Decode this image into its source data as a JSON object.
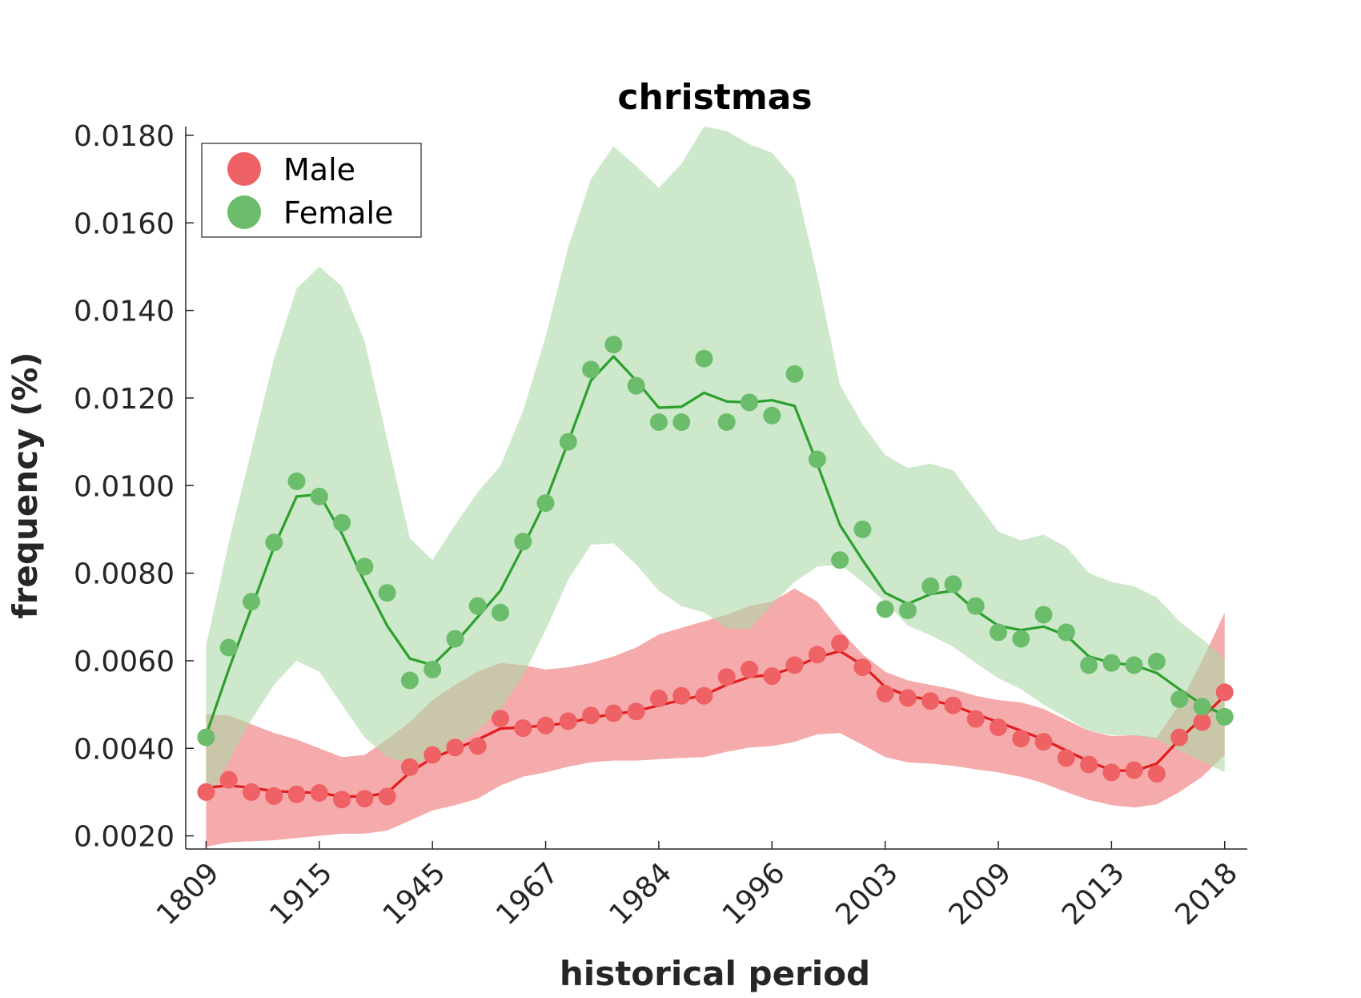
{
  "chart_data": {
    "type": "line",
    "title": "christmas",
    "xlabel": "historical period",
    "ylabel": "frequency (%)",
    "ylim": [
      0.0017,
      0.0182
    ],
    "yticks": [
      0.002,
      0.004,
      0.006,
      0.008,
      0.01,
      0.012,
      0.014,
      0.016,
      0.018
    ],
    "ytick_labels": [
      "0.0020",
      "0.0040",
      "0.0060",
      "0.0080",
      "0.0100",
      "0.0120",
      "0.0140",
      "0.0160",
      "0.0180"
    ],
    "x_tick_labels": [
      "1809",
      "1915",
      "1945",
      "1967",
      "1984",
      "1996",
      "2003",
      "2009",
      "2013",
      "2018"
    ],
    "x_tick_positions": [
      0,
      5,
      10,
      15,
      20,
      25,
      30,
      35,
      40,
      45
    ],
    "xlim": [
      -0.9,
      46.0
    ],
    "legend_placement": "top-left",
    "grid": false,
    "series": [
      {
        "name": "Male",
        "color": "#e41a1c",
        "scatter_color": "#ee6266",
        "band_color": "#f4a3a4",
        "points": [
          0.003,
          0.00328,
          0.003,
          0.00291,
          0.00295,
          0.00298,
          0.00283,
          0.00285,
          0.0029,
          0.00357,
          0.00385,
          0.00402,
          0.00405,
          0.00468,
          0.00446,
          0.00452,
          0.00462,
          0.00475,
          0.0048,
          0.00484,
          0.00514,
          0.0052,
          0.0052,
          0.00563,
          0.0058,
          0.00565,
          0.0059,
          0.00614,
          0.0064,
          0.00585,
          0.00525,
          0.00515,
          0.00508,
          0.00498,
          0.00467,
          0.00448,
          0.00422,
          0.00415,
          0.00378,
          0.00363,
          0.00345,
          0.0035,
          0.00342,
          0.00425,
          0.0046,
          0.00528
        ],
        "smooth": [
          0.0031,
          0.00315,
          0.0031,
          0.00302,
          0.003,
          0.00298,
          0.0029,
          0.0029,
          0.00298,
          0.00345,
          0.00378,
          0.00398,
          0.0042,
          0.00445,
          0.00448,
          0.00452,
          0.00458,
          0.0047,
          0.00478,
          0.00485,
          0.00498,
          0.0051,
          0.00522,
          0.00545,
          0.00563,
          0.00568,
          0.00585,
          0.00608,
          0.00622,
          0.0059,
          0.0054,
          0.0052,
          0.0051,
          0.00498,
          0.00478,
          0.0046,
          0.0044,
          0.0042,
          0.00395,
          0.0037,
          0.0035,
          0.00348,
          0.00365,
          0.0042,
          0.0047,
          0.0052
        ],
        "band_upper": [
          0.00477,
          0.00475,
          0.00455,
          0.00435,
          0.0042,
          0.004,
          0.0038,
          0.00385,
          0.0042,
          0.0046,
          0.0051,
          0.00545,
          0.00575,
          0.00595,
          0.0059,
          0.0058,
          0.00585,
          0.00595,
          0.0061,
          0.0063,
          0.0066,
          0.00675,
          0.0069,
          0.00705,
          0.00725,
          0.00735,
          0.00765,
          0.00735,
          0.0067,
          0.00615,
          0.00575,
          0.00555,
          0.00545,
          0.00535,
          0.0052,
          0.0051,
          0.00505,
          0.0049,
          0.00465,
          0.0044,
          0.00428,
          0.0043,
          0.00425,
          0.005,
          0.006,
          0.0071
        ],
        "band_lower": [
          0.00175,
          0.00185,
          0.00188,
          0.0019,
          0.00195,
          0.002,
          0.00205,
          0.00205,
          0.00212,
          0.00235,
          0.00258,
          0.0027,
          0.00285,
          0.00315,
          0.00335,
          0.00345,
          0.00358,
          0.00368,
          0.00372,
          0.00372,
          0.00375,
          0.00378,
          0.0038,
          0.00392,
          0.00402,
          0.00405,
          0.00415,
          0.00432,
          0.00435,
          0.00408,
          0.0038,
          0.00368,
          0.00365,
          0.0036,
          0.00352,
          0.00345,
          0.00335,
          0.0032,
          0.003,
          0.00282,
          0.0027,
          0.00265,
          0.00272,
          0.003,
          0.00335,
          0.00385
        ]
      },
      {
        "name": "Female",
        "color": "#2ca02c",
        "scatter_color": "#6bbd6b",
        "band_color": "#add8a8",
        "points": [
          0.00425,
          0.0063,
          0.00735,
          0.0087,
          0.0101,
          0.00975,
          0.00915,
          0.00815,
          0.00755,
          0.00555,
          0.0058,
          0.0065,
          0.00725,
          0.0071,
          0.00872,
          0.0096,
          0.011,
          0.01265,
          0.01322,
          0.01228,
          0.01145,
          0.01145,
          0.0129,
          0.01145,
          0.0119,
          0.0116,
          0.01255,
          0.0106,
          0.0083,
          0.009,
          0.00718,
          0.00715,
          0.0077,
          0.00775,
          0.00725,
          0.00665,
          0.0065,
          0.00705,
          0.00665,
          0.0059,
          0.00595,
          0.0059,
          0.00598,
          0.00512,
          0.00495,
          0.00472
        ],
        "smooth": [
          0.0043,
          0.0058,
          0.0072,
          0.0086,
          0.00975,
          0.0098,
          0.0089,
          0.0078,
          0.0068,
          0.00605,
          0.0059,
          0.0064,
          0.007,
          0.0076,
          0.0086,
          0.00965,
          0.011,
          0.0124,
          0.01295,
          0.0124,
          0.01178,
          0.0118,
          0.01212,
          0.01192,
          0.0119,
          0.01195,
          0.01182,
          0.0105,
          0.0091,
          0.0083,
          0.00755,
          0.0073,
          0.00752,
          0.0076,
          0.00715,
          0.0068,
          0.0067,
          0.00678,
          0.00658,
          0.0061,
          0.00595,
          0.0059,
          0.00572,
          0.00535,
          0.005,
          0.00475
        ],
        "band_upper": [
          0.00635,
          0.0087,
          0.0108,
          0.0129,
          0.0145,
          0.015,
          0.01455,
          0.0133,
          0.01105,
          0.0088,
          0.0083,
          0.0091,
          0.00985,
          0.01045,
          0.0117,
          0.0134,
          0.01545,
          0.017,
          0.01775,
          0.0173,
          0.0168,
          0.01735,
          0.0182,
          0.0181,
          0.0178,
          0.0176,
          0.017,
          0.0148,
          0.0123,
          0.0114,
          0.0107,
          0.0104,
          0.0105,
          0.01035,
          0.00965,
          0.00895,
          0.00875,
          0.00888,
          0.0086,
          0.008,
          0.0078,
          0.0077,
          0.00745,
          0.0069,
          0.0065,
          0.00605
        ],
        "band_lower": [
          0.00275,
          0.0037,
          0.00465,
          0.00545,
          0.006,
          0.00575,
          0.005,
          0.00425,
          0.0038,
          0.00365,
          0.00375,
          0.00405,
          0.0044,
          0.0049,
          0.00565,
          0.0067,
          0.00785,
          0.00865,
          0.00868,
          0.0082,
          0.0076,
          0.00725,
          0.0071,
          0.00675,
          0.00672,
          0.00728,
          0.0078,
          0.00815,
          0.0082,
          0.0078,
          0.00735,
          0.0068,
          0.00658,
          0.00632,
          0.00595,
          0.0056,
          0.00535,
          0.005,
          0.0047,
          0.0044,
          0.0043,
          0.0043,
          0.0042,
          0.00395,
          0.0037,
          0.00345
        ]
      }
    ]
  }
}
